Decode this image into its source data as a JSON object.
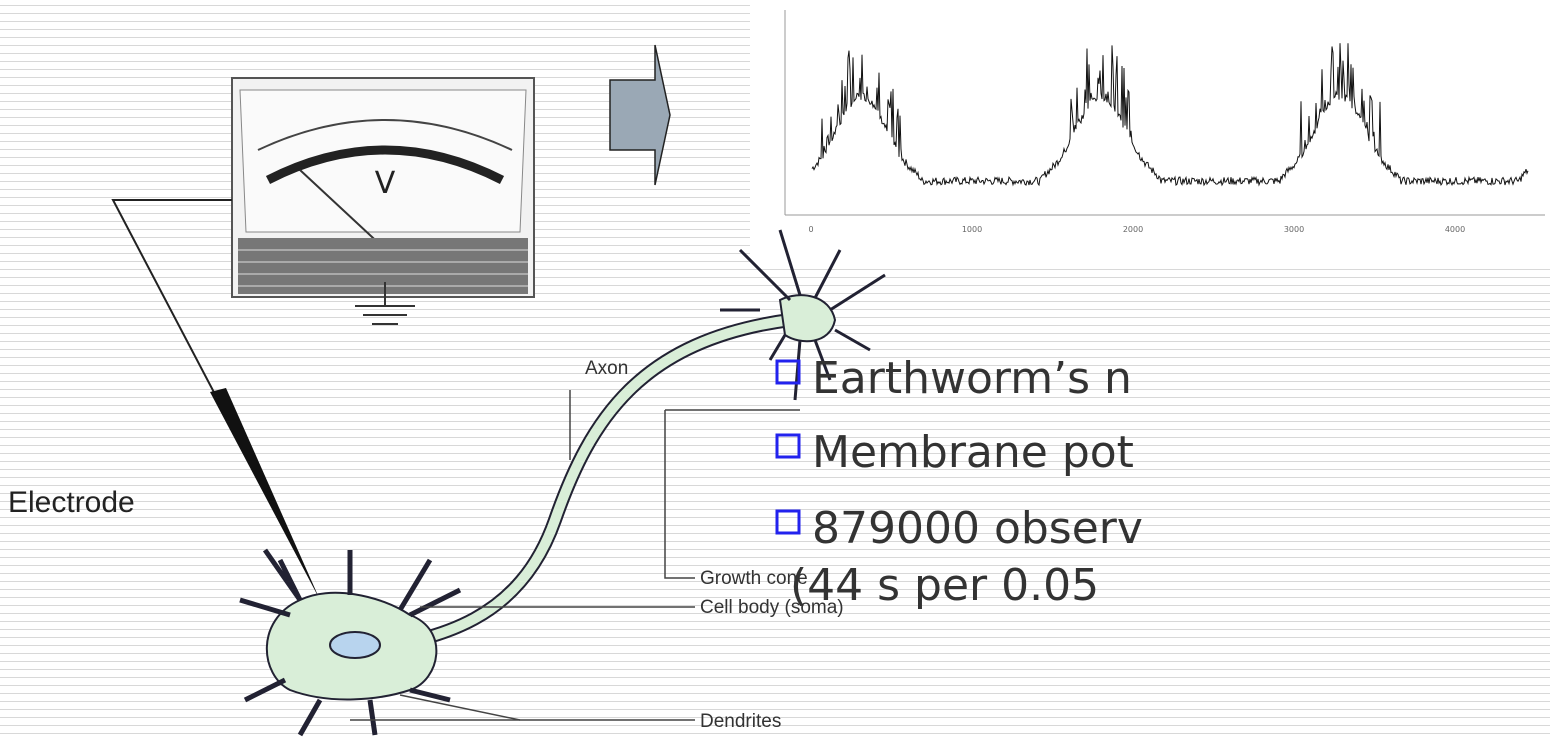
{
  "diagram": {
    "electrode_label": "Electrode",
    "meter_label": "V",
    "neuron_labels": {
      "axon": "Axon",
      "growth_cone": "Growth cone",
      "cell_body": "Cell body (soma)",
      "dendrites": "Dendrites"
    },
    "trace": {
      "xticks": [
        "0",
        "1000",
        "2000",
        "3000",
        "4000"
      ]
    },
    "bullets": [
      "Earthworm’s n",
      "Membrane pot",
      "879000 observ",
      "(44 s per 0.05"
    ]
  }
}
